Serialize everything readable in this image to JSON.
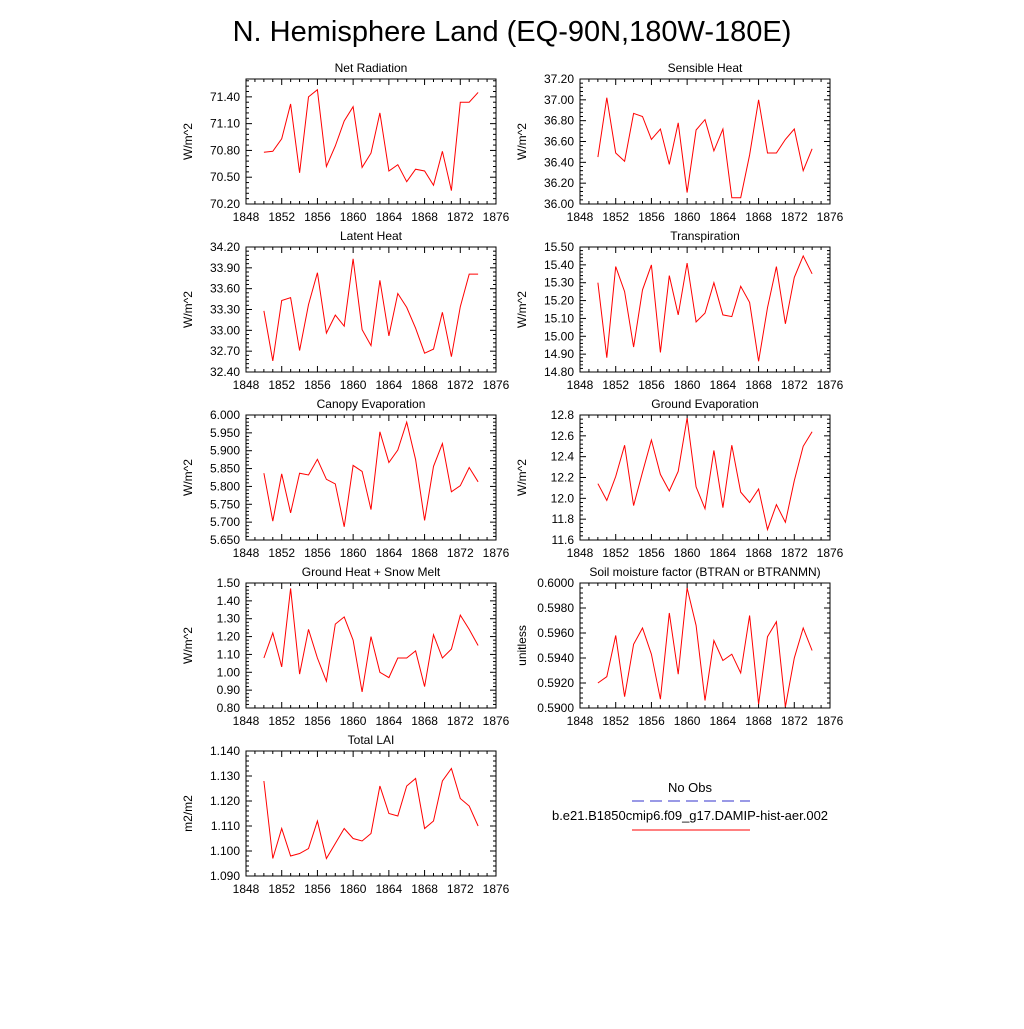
{
  "page": {
    "title": "N. Hemisphere Land (EQ-90N,180W-180E)"
  },
  "legend": {
    "obs_label": "No Obs",
    "obs_color": "#3333cc",
    "model_label": "b.e21.B1850cmip6.f09_g17.DAMIP-hist-aer.002",
    "model_color": "#ff0000"
  },
  "chart_data": [
    {
      "type": "line",
      "title": "Net Radiation",
      "xlabel": "",
      "ylabel": "W/m^2",
      "xlim": [
        1848,
        1876
      ],
      "ylim": [
        70.2,
        71.6
      ],
      "xticks": [
        "1848",
        "1852",
        "1856",
        "1860",
        "1864",
        "1868",
        "1872",
        "1876"
      ],
      "yticks": [
        "70.20",
        "70.50",
        "70.80",
        "71.10",
        "71.40"
      ],
      "series": [
        {
          "color": "#ff0000",
          "x": [
            1850,
            1851,
            1852,
            1853,
            1854,
            1855,
            1856,
            1857,
            1858,
            1859,
            1860,
            1861,
            1862,
            1863,
            1864,
            1865,
            1866,
            1867,
            1868,
            1869,
            1870,
            1871,
            1872,
            1873,
            1874
          ],
          "values": [
            70.78,
            70.79,
            70.93,
            71.32,
            70.55,
            71.4,
            71.48,
            70.62,
            70.85,
            71.13,
            71.29,
            70.61,
            70.77,
            71.22,
            70.57,
            70.64,
            70.45,
            70.59,
            70.57,
            70.41,
            70.79,
            70.35,
            71.34,
            71.34,
            71.45
          ]
        }
      ]
    },
    {
      "type": "line",
      "title": "Sensible Heat",
      "xlabel": "",
      "ylabel": "W/m^2",
      "xlim": [
        1848,
        1876
      ],
      "ylim": [
        36.0,
        37.2
      ],
      "xticks": [
        "1848",
        "1852",
        "1856",
        "1860",
        "1864",
        "1868",
        "1872",
        "1876"
      ],
      "yticks": [
        "36.00",
        "36.20",
        "36.40",
        "36.60",
        "36.80",
        "37.00",
        "37.20"
      ],
      "series": [
        {
          "color": "#ff0000",
          "x": [
            1850,
            1851,
            1852,
            1853,
            1854,
            1855,
            1856,
            1857,
            1858,
            1859,
            1860,
            1861,
            1862,
            1863,
            1864,
            1865,
            1866,
            1867,
            1868,
            1869,
            1870,
            1871,
            1872,
            1873,
            1874
          ],
          "values": [
            36.45,
            37.02,
            36.49,
            36.41,
            36.87,
            36.84,
            36.62,
            36.72,
            36.38,
            36.78,
            36.11,
            36.71,
            36.81,
            36.51,
            36.72,
            36.06,
            36.06,
            36.47,
            37.0,
            36.49,
            36.49,
            36.62,
            36.72,
            36.32,
            36.53
          ]
        }
      ]
    },
    {
      "type": "line",
      "title": "Latent Heat",
      "xlabel": "",
      "ylabel": "W/m^2",
      "xlim": [
        1848,
        1876
      ],
      "ylim": [
        32.4,
        34.2
      ],
      "xticks": [
        "1848",
        "1852",
        "1856",
        "1860",
        "1864",
        "1868",
        "1872",
        "1876"
      ],
      "yticks": [
        "32.40",
        "32.70",
        "33.00",
        "33.30",
        "33.60",
        "33.90",
        "34.20"
      ],
      "series": [
        {
          "color": "#ff0000",
          "x": [
            1850,
            1851,
            1852,
            1853,
            1854,
            1855,
            1856,
            1857,
            1858,
            1859,
            1860,
            1861,
            1862,
            1863,
            1864,
            1865,
            1866,
            1867,
            1868,
            1869,
            1870,
            1871,
            1872,
            1873,
            1874
          ],
          "values": [
            33.28,
            32.56,
            33.43,
            33.47,
            32.71,
            33.37,
            33.83,
            32.96,
            33.22,
            33.06,
            34.03,
            33.01,
            32.78,
            33.72,
            32.92,
            33.53,
            33.33,
            33.03,
            32.67,
            32.73,
            33.26,
            32.62,
            33.34,
            33.81,
            33.81
          ]
        }
      ]
    },
    {
      "type": "line",
      "title": "Transpiration",
      "xlabel": "",
      "ylabel": "W/m^2",
      "xlim": [
        1848,
        1876
      ],
      "ylim": [
        14.8,
        15.5
      ],
      "xticks": [
        "1848",
        "1852",
        "1856",
        "1860",
        "1864",
        "1868",
        "1872",
        "1876"
      ],
      "yticks": [
        "14.80",
        "14.90",
        "15.00",
        "15.10",
        "15.20",
        "15.30",
        "15.40",
        "15.50"
      ],
      "series": [
        {
          "color": "#ff0000",
          "x": [
            1850,
            1851,
            1852,
            1853,
            1854,
            1855,
            1856,
            1857,
            1858,
            1859,
            1860,
            1861,
            1862,
            1863,
            1864,
            1865,
            1866,
            1867,
            1868,
            1869,
            1870,
            1871,
            1872,
            1873,
            1874
          ],
          "values": [
            15.3,
            14.88,
            15.39,
            15.25,
            14.94,
            15.26,
            15.4,
            14.91,
            15.34,
            15.12,
            15.41,
            15.08,
            15.13,
            15.3,
            15.12,
            15.11,
            15.28,
            15.19,
            14.86,
            15.16,
            15.39,
            15.07,
            15.33,
            15.45,
            15.35
          ]
        }
      ]
    },
    {
      "type": "line",
      "title": "Canopy Evaporation",
      "xlabel": "",
      "ylabel": "W/m^2",
      "xlim": [
        1848,
        1876
      ],
      "ylim": [
        5.65,
        6.0
      ],
      "xticks": [
        "1848",
        "1852",
        "1856",
        "1860",
        "1864",
        "1868",
        "1872",
        "1876"
      ],
      "yticks": [
        "5.650",
        "5.700",
        "5.750",
        "5.800",
        "5.850",
        "5.900",
        "5.950",
        "6.000"
      ],
      "series": [
        {
          "color": "#ff0000",
          "x": [
            1850,
            1851,
            1852,
            1853,
            1854,
            1855,
            1856,
            1857,
            1858,
            1859,
            1860,
            1861,
            1862,
            1863,
            1864,
            1865,
            1866,
            1867,
            1868,
            1869,
            1870,
            1871,
            1872,
            1873,
            1874
          ],
          "values": [
            5.837,
            5.703,
            5.835,
            5.726,
            5.837,
            5.832,
            5.876,
            5.82,
            5.807,
            5.687,
            5.859,
            5.842,
            5.735,
            5.953,
            5.867,
            5.902,
            5.98,
            5.875,
            5.705,
            5.856,
            5.92,
            5.785,
            5.802,
            5.853,
            5.813
          ]
        }
      ]
    },
    {
      "type": "line",
      "title": "Ground Evaporation",
      "xlabel": "",
      "ylabel": "W/m^2",
      "xlim": [
        1848,
        1876
      ],
      "ylim": [
        11.6,
        12.8
      ],
      "xticks": [
        "1848",
        "1852",
        "1856",
        "1860",
        "1864",
        "1868",
        "1872",
        "1876"
      ],
      "yticks": [
        "11.6",
        "11.8",
        "12.0",
        "12.2",
        "12.4",
        "12.6",
        "12.8"
      ],
      "series": [
        {
          "color": "#ff0000",
          "x": [
            1850,
            1851,
            1852,
            1853,
            1854,
            1855,
            1856,
            1857,
            1858,
            1859,
            1860,
            1861,
            1862,
            1863,
            1864,
            1865,
            1866,
            1867,
            1868,
            1869,
            1870,
            1871,
            1872,
            1873,
            1874
          ],
          "values": [
            12.14,
            11.98,
            12.21,
            12.51,
            11.93,
            12.25,
            12.56,
            12.23,
            12.07,
            12.26,
            12.77,
            12.11,
            11.9,
            12.46,
            11.91,
            12.51,
            12.06,
            11.96,
            12.09,
            11.7,
            11.94,
            11.77,
            12.17,
            12.5,
            12.64
          ]
        }
      ]
    },
    {
      "type": "line",
      "title": "Ground Heat + Snow Melt",
      "xlabel": "",
      "ylabel": "W/m^2",
      "xlim": [
        1848,
        1876
      ],
      "ylim": [
        0.8,
        1.5
      ],
      "xticks": [
        "1848",
        "1852",
        "1856",
        "1860",
        "1864",
        "1868",
        "1872",
        "1876"
      ],
      "yticks": [
        "0.80",
        "0.90",
        "1.00",
        "1.10",
        "1.20",
        "1.30",
        "1.40",
        "1.50"
      ],
      "series": [
        {
          "color": "#ff0000",
          "x": [
            1850,
            1851,
            1852,
            1853,
            1854,
            1855,
            1856,
            1857,
            1858,
            1859,
            1860,
            1861,
            1862,
            1863,
            1864,
            1865,
            1866,
            1867,
            1868,
            1869,
            1870,
            1871,
            1872,
            1873,
            1874
          ],
          "values": [
            1.08,
            1.22,
            1.03,
            1.47,
            0.99,
            1.24,
            1.08,
            0.95,
            1.27,
            1.31,
            1.18,
            0.89,
            1.2,
            1.0,
            0.97,
            1.08,
            1.08,
            1.12,
            0.92,
            1.21,
            1.08,
            1.13,
            1.32,
            1.24,
            1.15
          ]
        }
      ]
    },
    {
      "type": "line",
      "title": "Soil moisture factor (BTRAN or BTRANMN)",
      "xlabel": "",
      "ylabel": "unitless",
      "xlim": [
        1848,
        1876
      ],
      "ylim": [
        0.59,
        0.6
      ],
      "xticks": [
        "1848",
        "1852",
        "1856",
        "1860",
        "1864",
        "1868",
        "1872",
        "1876"
      ],
      "yticks": [
        "0.5900",
        "0.5920",
        "0.5940",
        "0.5960",
        "0.5980",
        "0.6000"
      ],
      "series": [
        {
          "color": "#ff0000",
          "x": [
            1850,
            1851,
            1852,
            1853,
            1854,
            1855,
            1856,
            1857,
            1858,
            1859,
            1860,
            1861,
            1862,
            1863,
            1864,
            1865,
            1866,
            1867,
            1868,
            1869,
            1870,
            1871,
            1872,
            1873,
            1874
          ],
          "values": [
            0.592,
            0.5925,
            0.5958,
            0.5909,
            0.5951,
            0.5964,
            0.5943,
            0.5907,
            0.5976,
            0.5927,
            0.5996,
            0.5966,
            0.5906,
            0.5954,
            0.5938,
            0.5943,
            0.5928,
            0.5974,
            0.5903,
            0.5957,
            0.5969,
            0.5901,
            0.594,
            0.5964,
            0.5946
          ]
        }
      ]
    },
    {
      "type": "line",
      "title": "Total LAI",
      "xlabel": "",
      "ylabel": "m2/m2",
      "xlim": [
        1848,
        1876
      ],
      "ylim": [
        1.09,
        1.14
      ],
      "xticks": [
        "1848",
        "1852",
        "1856",
        "1860",
        "1864",
        "1868",
        "1872",
        "1876"
      ],
      "yticks": [
        "1.090",
        "1.100",
        "1.110",
        "1.120",
        "1.130",
        "1.140"
      ],
      "series": [
        {
          "color": "#ff0000",
          "x": [
            1850,
            1851,
            1852,
            1853,
            1854,
            1855,
            1856,
            1857,
            1858,
            1859,
            1860,
            1861,
            1862,
            1863,
            1864,
            1865,
            1866,
            1867,
            1868,
            1869,
            1870,
            1871,
            1872,
            1873,
            1874
          ],
          "values": [
            1.128,
            1.097,
            1.109,
            1.098,
            1.099,
            1.101,
            1.112,
            1.097,
            1.103,
            1.109,
            1.105,
            1.104,
            1.107,
            1.126,
            1.115,
            1.114,
            1.126,
            1.129,
            1.109,
            1.112,
            1.128,
            1.133,
            1.121,
            1.118,
            1.11
          ]
        }
      ]
    }
  ]
}
